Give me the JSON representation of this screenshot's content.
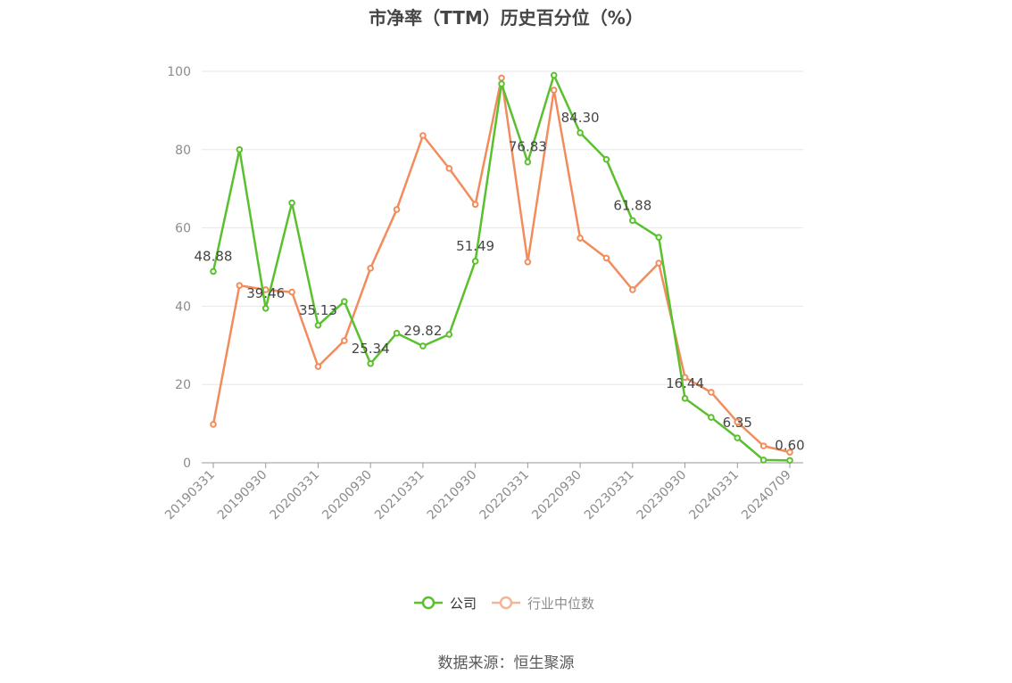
{
  "title": "市净率（TTM）历史百分位（%）",
  "source": "数据来源：恒生聚源",
  "colors": {
    "company": "#5ac02e",
    "industry": "#f28c5c",
    "legend_inactive": "#f4b49a",
    "grid": "#e6e6ee",
    "axis": "#999999"
  },
  "chart_data": {
    "type": "line",
    "ylim": [
      0,
      100
    ],
    "yticks": [
      0,
      20,
      40,
      60,
      80,
      100
    ],
    "x": [
      "20190331",
      "20190630",
      "20190930",
      "20191231",
      "20200331",
      "20200630",
      "20200930",
      "20201231",
      "20210331",
      "20210630",
      "20210930",
      "20211231",
      "20220331",
      "20220630",
      "20220930",
      "20221231",
      "20230331",
      "20230630",
      "20230930",
      "20231231",
      "20240331",
      "20240630",
      "20240709"
    ],
    "x_tick_labels": [
      "20190331",
      "20190930",
      "20200331",
      "20200930",
      "20210331",
      "20210930",
      "20220331",
      "20220930",
      "20230331",
      "20230930",
      "20240331",
      "20240709"
    ],
    "x_tick_indices": [
      0,
      2,
      4,
      6,
      8,
      10,
      12,
      14,
      16,
      18,
      20,
      22
    ],
    "series": [
      {
        "name": "公司",
        "color_key": "company",
        "values": [
          48.88,
          80.0,
          39.46,
          66.4,
          35.13,
          41.2,
          25.34,
          33.1,
          29.82,
          32.8,
          51.49,
          96.8,
          76.83,
          99.0,
          84.3,
          77.5,
          61.88,
          57.6,
          16.44,
          11.6,
          6.35,
          0.7,
          0.6
        ]
      },
      {
        "name": "行业中位数",
        "color_key": "industry",
        "values": [
          9.8,
          45.3,
          44.2,
          43.6,
          24.6,
          31.2,
          49.7,
          64.7,
          83.6,
          75.2,
          66.0,
          98.3,
          51.3,
          95.2,
          57.4,
          52.3,
          44.2,
          51.0,
          21.8,
          18.0,
          10.4,
          4.3,
          2.7
        ]
      }
    ],
    "data_labels": [
      {
        "index": 0,
        "text": "48.88"
      },
      {
        "index": 2,
        "text": "39.46"
      },
      {
        "index": 4,
        "text": "35.13"
      },
      {
        "index": 6,
        "text": "25.34"
      },
      {
        "index": 8,
        "text": "29.82"
      },
      {
        "index": 10,
        "text": "51.49"
      },
      {
        "index": 12,
        "text": "76.83"
      },
      {
        "index": 14,
        "text": "84.30"
      },
      {
        "index": 16,
        "text": "61.88"
      },
      {
        "index": 18,
        "text": "16.44"
      },
      {
        "index": 20,
        "text": "6.35"
      },
      {
        "index": 22,
        "text": "0.60"
      }
    ],
    "legend": [
      "公司",
      "行业中位数"
    ],
    "legend_position": "bottom-center",
    "grid": true
  }
}
